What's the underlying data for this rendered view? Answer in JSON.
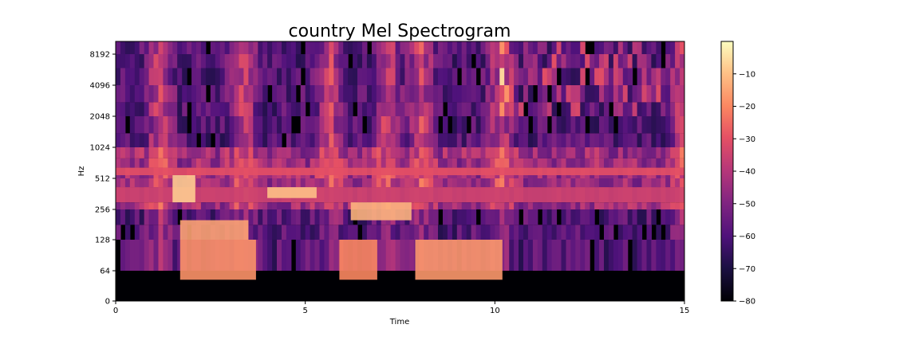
{
  "chart_data": {
    "type": "heatmap",
    "title": "country Mel Spectrogram",
    "xlabel": "Time",
    "ylabel": "Hz",
    "x_ticks": [
      "0",
      "5",
      "10",
      "15"
    ],
    "x_tick_values": [
      0,
      5,
      10,
      15
    ],
    "xlim": [
      0,
      15
    ],
    "y_ticks": [
      "0",
      "64",
      "128",
      "256",
      "512",
      "1024",
      "2048",
      "4096",
      "8192"
    ],
    "y_tick_values": [
      0,
      64,
      128,
      256,
      512,
      1024,
      2048,
      4096,
      8192
    ],
    "y_scale": "mel",
    "colorbar": {
      "ticks": [
        "−10",
        "−20",
        "−30",
        "−40",
        "−50",
        "−60",
        "−70",
        "−80"
      ],
      "tick_values": [
        -10,
        -20,
        -30,
        -40,
        -50,
        -60,
        -70,
        -80
      ],
      "range": [
        -80,
        0
      ],
      "colormap": "magma"
    },
    "energy_blocks": [
      {
        "t": [
          1.7,
          3.7
        ],
        "hz": [
          45,
          128
        ],
        "db": -18
      },
      {
        "t": [
          5.9,
          6.9
        ],
        "hz": [
          45,
          128
        ],
        "db": -20
      },
      {
        "t": [
          7.9,
          10.2
        ],
        "hz": [
          45,
          128
        ],
        "db": -17
      },
      {
        "t": [
          1.7,
          3.5
        ],
        "hz": [
          128,
          200
        ],
        "db": -15
      },
      {
        "t": [
          6.2,
          7.8
        ],
        "hz": [
          200,
          300
        ],
        "db": -12
      },
      {
        "t": [
          0,
          15
        ],
        "hz": [
          300,
          420
        ],
        "db": -35
      },
      {
        "t": [
          0,
          15
        ],
        "hz": [
          550,
          650
        ],
        "db": -30
      },
      {
        "t": [
          4.0,
          5.3
        ],
        "hz": [
          330,
          420
        ],
        "db": -10
      },
      {
        "t": [
          1.5,
          2.1
        ],
        "hz": [
          300,
          550
        ],
        "db": -8
      }
    ]
  }
}
